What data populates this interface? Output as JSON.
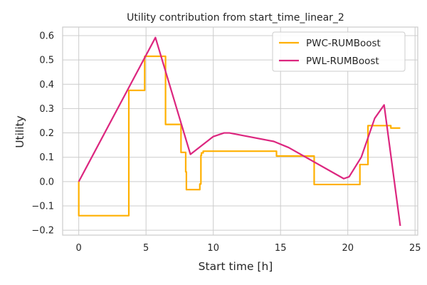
{
  "chart_data": {
    "type": "line",
    "title": "Utility contribution from start_time_linear_2",
    "xlabel": "Start time [h]",
    "ylabel": "Utility",
    "xlim": [
      -1.2,
      25.2
    ],
    "ylim": [
      -0.22,
      0.635
    ],
    "xticks": [
      0,
      5,
      10,
      15,
      20,
      25
    ],
    "yticks": [
      -0.2,
      -0.1,
      0.0,
      0.1,
      0.2,
      0.3,
      0.4,
      0.5,
      0.6
    ],
    "xtick_labels": [
      "0",
      "5",
      "10",
      "15",
      "20",
      "25"
    ],
    "ytick_labels": [
      "−0.2",
      "−0.1",
      "0.0",
      "0.1",
      "0.2",
      "0.3",
      "0.4",
      "0.5",
      "0.6"
    ],
    "grid": true,
    "legend_position": "top-right",
    "series": [
      {
        "name": "PWC-RUMBoost",
        "color": "#ffb000",
        "step": true,
        "x": [
          0,
          0,
          3.72,
          3.72,
          4.9,
          4.9,
          6.45,
          6.45,
          7.6,
          7.6,
          7.95,
          7.95,
          8.0,
          8.0,
          9.0,
          9.0,
          9.08,
          9.08,
          9.12,
          9.12,
          9.25,
          9.25,
          14.7,
          14.7,
          17.5,
          17.5,
          20.9,
          20.9,
          21.5,
          21.5,
          23.2,
          23.2,
          23.9
        ],
        "y": [
          0.0,
          -0.14,
          -0.14,
          0.375,
          0.375,
          0.515,
          0.515,
          0.235,
          0.235,
          0.12,
          0.12,
          0.04,
          0.04,
          -0.033,
          -0.033,
          -0.01,
          -0.01,
          0.108,
          0.108,
          0.118,
          0.118,
          0.125,
          0.125,
          0.105,
          0.105,
          -0.012,
          -0.012,
          0.07,
          0.07,
          0.23,
          0.23,
          0.22,
          0.22
        ]
      },
      {
        "name": "PWL-RUMBoost",
        "color": "#dc267f",
        "step": false,
        "x": [
          0,
          5.7,
          8.3,
          10.0,
          10.8,
          11.2,
          14.5,
          15.6,
          19.7,
          20.1,
          21.0,
          22.0,
          22.7,
          23.9
        ],
        "y": [
          0.0,
          0.592,
          0.112,
          0.185,
          0.2,
          0.2,
          0.165,
          0.14,
          0.012,
          0.02,
          0.1,
          0.26,
          0.315,
          -0.182
        ]
      }
    ]
  }
}
